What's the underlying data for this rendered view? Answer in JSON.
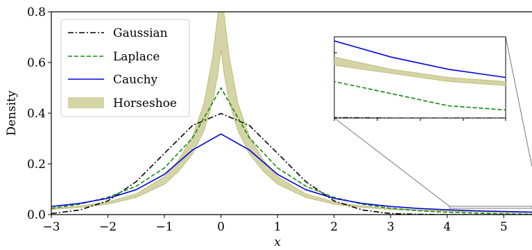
{
  "chart_data": {
    "type": "line",
    "title": "",
    "xlabel": "x",
    "ylabel": "Density",
    "xlim": [
      -3,
      5.5
    ],
    "ylim": [
      0,
      0.8
    ],
    "xticks": [
      -3,
      -2,
      -1,
      0,
      1,
      2,
      3,
      4,
      5
    ],
    "xtick_labels": [
      "−3",
      "−2",
      "−1",
      "0",
      "1",
      "2",
      "3",
      "4",
      "5"
    ],
    "yticks": [
      0.0,
      0.2,
      0.4,
      0.6,
      0.8
    ],
    "ytick_labels": [
      "0.0",
      "0.2",
      "0.4",
      "0.6",
      "0.8"
    ],
    "grid": false,
    "legend_position": "top-left",
    "series": [
      {
        "name": "Gaussian",
        "style": "dash-dot",
        "color": "#000000",
        "x": [
          -3,
          -2.5,
          -2,
          -1.5,
          -1,
          -0.5,
          0,
          0.5,
          1,
          1.5,
          2,
          2.5,
          3,
          3.5,
          4,
          4.5,
          5,
          5.5
        ],
        "y": [
          0.004,
          0.018,
          0.054,
          0.13,
          0.242,
          0.352,
          0.399,
          0.352,
          0.242,
          0.13,
          0.054,
          0.018,
          0.004,
          0.001,
          0.0001,
          0.0,
          0.0,
          0.0
        ]
      },
      {
        "name": "Laplace",
        "style": "dashed",
        "color": "#118811",
        "x": [
          -3,
          -2.5,
          -2,
          -1.5,
          -1,
          -0.5,
          0,
          0.5,
          1,
          1.5,
          2,
          2.5,
          3,
          3.5,
          4,
          4.5,
          5,
          5.5
        ],
        "y": [
          0.025,
          0.041,
          0.068,
          0.112,
          0.184,
          0.303,
          0.5,
          0.303,
          0.184,
          0.112,
          0.068,
          0.041,
          0.025,
          0.015,
          0.009,
          0.006,
          0.003,
          0.002
        ]
      },
      {
        "name": "Cauchy",
        "style": "solid",
        "color": "#0000dd",
        "x": [
          -3,
          -2.5,
          -2,
          -1.5,
          -1,
          -0.5,
          0,
          0.5,
          1,
          1.5,
          2,
          2.5,
          3,
          3.5,
          4,
          4.5,
          5,
          5.5
        ],
        "y": [
          0.032,
          0.044,
          0.064,
          0.098,
          0.159,
          0.255,
          0.318,
          0.255,
          0.159,
          0.098,
          0.064,
          0.044,
          0.032,
          0.024,
          0.019,
          0.015,
          0.012,
          0.01
        ]
      }
    ],
    "band": {
      "name": "Horseshoe",
      "fill": "#d4d4a6",
      "edge": "#9a9a30",
      "x": [
        -3,
        -2.5,
        -2,
        -1.5,
        -1,
        -0.75,
        -0.5,
        -0.3,
        -0.15,
        -0.05,
        0,
        0.05,
        0.15,
        0.3,
        0.5,
        0.75,
        1,
        1.5,
        2,
        2.5,
        3,
        3.5,
        4,
        4.5,
        5,
        5.5
      ],
      "lower": [
        0.02,
        0.028,
        0.041,
        0.067,
        0.12,
        0.17,
        0.24,
        0.33,
        0.44,
        0.56,
        0.65,
        0.56,
        0.44,
        0.33,
        0.24,
        0.17,
        0.12,
        0.067,
        0.041,
        0.028,
        0.02,
        0.016,
        0.013,
        0.011,
        0.009,
        0.008
      ],
      "upper": [
        0.024,
        0.034,
        0.05,
        0.082,
        0.15,
        0.215,
        0.31,
        0.44,
        0.62,
        0.8,
        0.8,
        0.8,
        0.62,
        0.44,
        0.31,
        0.215,
        0.15,
        0.082,
        0.05,
        0.034,
        0.024,
        0.019,
        0.015,
        0.012,
        0.01,
        0.009
      ]
    },
    "inset": {
      "xlim": [
        4.0,
        5.5
      ],
      "ylim": [
        0.0,
        0.02
      ],
      "zoom_note": "magnified view of the tails"
    }
  }
}
